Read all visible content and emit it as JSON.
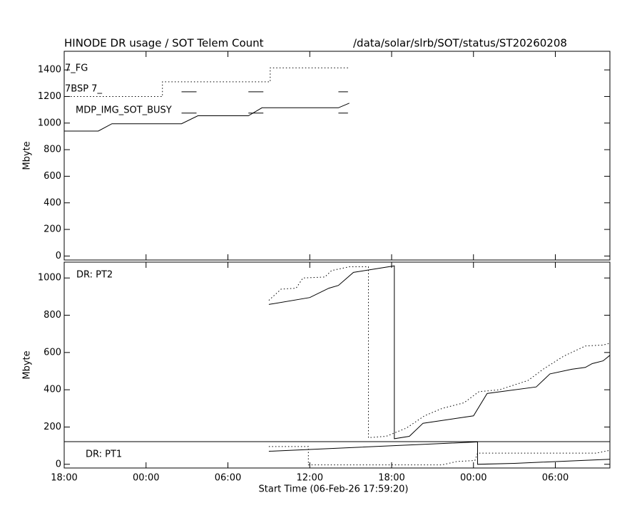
{
  "header": {
    "title": "HINODE DR usage / SOT Telem Count",
    "path": "/data/solar/slrb/SOT/status/ST20260208"
  },
  "chart_data": [
    {
      "type": "line",
      "ylabel": "Mbyte",
      "show_xtick_labels": false,
      "xlim": [
        0,
        40
      ],
      "xticks": [
        {
          "value": 0,
          "label": "18:00"
        },
        {
          "value": 6,
          "label": "00:00"
        },
        {
          "value": 12,
          "label": "06:00"
        },
        {
          "value": 18,
          "label": "12:00"
        },
        {
          "value": 24,
          "label": "18:00"
        },
        {
          "value": 30,
          "label": "00:00"
        },
        {
          "value": 36,
          "label": "06:00"
        }
      ],
      "ylim": [
        -30,
        1540
      ],
      "yticks": [
        0,
        200,
        400,
        600,
        800,
        1000,
        1200,
        1400
      ],
      "annotations": [
        "7_FG",
        "7BSP  7_",
        "MDP_IMG_SOT_BUSY"
      ],
      "series": [
        {
          "style": "dotted",
          "color": "#000000",
          "x": [
            0,
            7.2,
            7.2,
            15.1,
            15.1,
            20.9
          ],
          "values": [
            1200,
            1200,
            1310,
            1310,
            1415,
            1415
          ]
        },
        {
          "style": "solid",
          "color": "#000000",
          "x": [
            0,
            2.5,
            3.5,
            8.6,
            9.8,
            13.5,
            14.5,
            20.1,
            20.9
          ],
          "values": [
            940,
            940,
            995,
            995,
            1055,
            1055,
            1115,
            1115,
            1150
          ]
        },
        {
          "style": "solid",
          "color": "#000000",
          "x": [
            8.6,
            9.7,
            null,
            13.5,
            14.6,
            null,
            20.1,
            20.8
          ],
          "values": [
            1235,
            1235,
            null,
            1235,
            1235,
            null,
            1235,
            1235
          ]
        },
        {
          "style": "solid",
          "color": "#000000",
          "x": [
            8.6,
            9.7,
            null,
            13.5,
            14.6,
            null,
            20.1,
            20.8
          ],
          "values": [
            1075,
            1075,
            null,
            1075,
            1075,
            null,
            1075,
            1075
          ]
        }
      ]
    },
    {
      "type": "line",
      "ylabel": "Mbyte",
      "xlabel": "Start Time (06-Feb-26 17:59:20)",
      "show_xtick_labels": true,
      "xlim": [
        0,
        40
      ],
      "xticks": [
        {
          "value": 0,
          "label": "18:00"
        },
        {
          "value": 6,
          "label": "00:00"
        },
        {
          "value": 12,
          "label": "06:00"
        },
        {
          "value": 18,
          "label": "12:00"
        },
        {
          "value": 24,
          "label": "18:00"
        },
        {
          "value": 30,
          "label": "00:00"
        },
        {
          "value": 36,
          "label": "06:00"
        }
      ],
      "ylim": [
        -20,
        1085
      ],
      "yticks": [
        0,
        200,
        400,
        600,
        800,
        1000
      ],
      "annotations": [
        "DR: PT2",
        "DR: PT1"
      ],
      "series": [
        {
          "style": "solid",
          "color": "#000000",
          "x": [
            15,
            18,
            19.4,
            20.1,
            21.2,
            24.2,
            24.2,
            25.3,
            26.3,
            30,
            31,
            34.6,
            35.6,
            37.2,
            38.2,
            38.7,
            39.5,
            40
          ],
          "values": [
            858,
            895,
            945,
            960,
            1030,
            1065,
            137,
            150,
            220,
            260,
            380,
            415,
            485,
            510,
            520,
            540,
            555,
            585
          ]
        },
        {
          "style": "dotted",
          "color": "#000000",
          "x": [
            15,
            15.9,
            17,
            17.5,
            19.1,
            19.6,
            20.9,
            22.3,
            22.3,
            23.6,
            25.1,
            26.4,
            27.7,
            29.3,
            30.4,
            31.9,
            34,
            35.1,
            36.6,
            38.2,
            39.5,
            40
          ],
          "values": [
            880,
            940,
            945,
            1000,
            1005,
            1040,
            1060,
            1060,
            143,
            150,
            195,
            260,
            300,
            330,
            390,
            400,
            450,
            510,
            580,
            635,
            640,
            650
          ]
        },
        {
          "style": "solid",
          "color": "#000000",
          "x": [
            15,
            30.3,
            30.3,
            33,
            40
          ],
          "values": [
            70,
            120,
            0,
            5,
            27
          ]
        },
        {
          "style": "dotted",
          "color": "#000000",
          "x": [
            15,
            17.9,
            17.9,
            27.7,
            28.8,
            30.1,
            30.3,
            39,
            40
          ],
          "values": [
            95,
            95,
            -3,
            -3,
            15,
            20,
            60,
            60,
            75
          ]
        }
      ]
    }
  ]
}
